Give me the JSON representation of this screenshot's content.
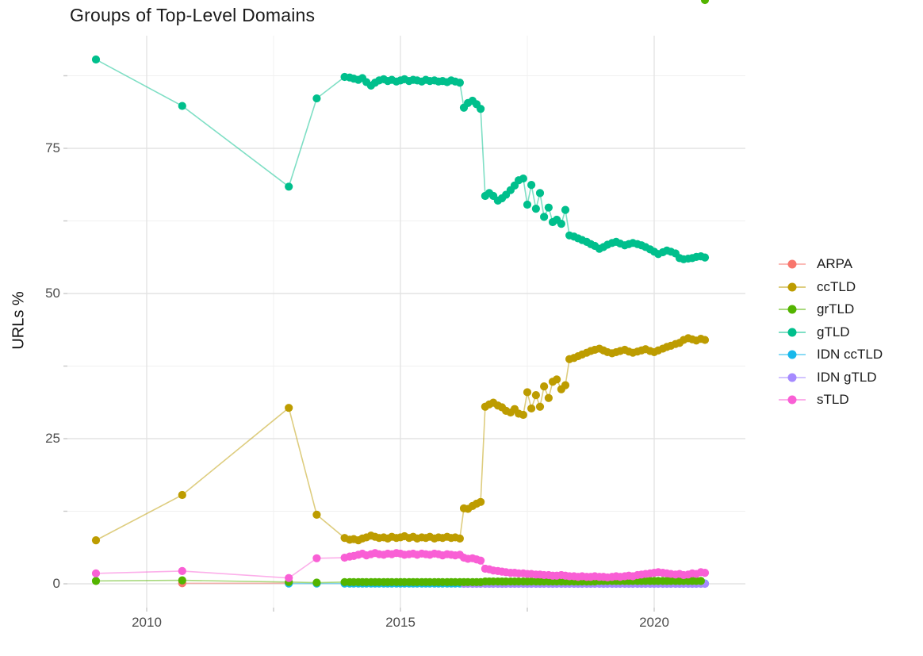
{
  "title": "Groups of Top-Level Domains",
  "chart_data": {
    "type": "line",
    "title": "Groups of Top-Level Domains",
    "xlabel": "",
    "ylabel": "URLs %",
    "legend_position": "right",
    "grid": true,
    "background": "#ffffff",
    "grid_major_color": "#e3e3e3",
    "grid_minor_color": "#f0f0f0",
    "tick_color": "#c9c9c9",
    "axis_text_color": "#4d4d4d",
    "xlim": [
      2008.4,
      2021.6
    ],
    "ylim": [
      -4,
      94
    ],
    "x_ticks": [
      {
        "value": 2010,
        "label": "2010"
      },
      {
        "value": 2015,
        "label": "2015"
      },
      {
        "value": 2020,
        "label": "2020"
      }
    ],
    "x_minor": [
      2012.5,
      2017.5
    ],
    "y_ticks": [
      {
        "value": 0,
        "label": "0"
      },
      {
        "value": 25,
        "label": "25"
      },
      {
        "value": 50,
        "label": "50"
      },
      {
        "value": 75,
        "label": "75"
      }
    ],
    "y_minor": [
      12.5,
      37.5,
      62.5,
      87.5
    ],
    "x_grids": {
      "arpa": [
        2010.7,
        2012.8
      ],
      "early3": [
        2012.8,
        2013.35,
        2013.9
      ],
      "early5": [
        2009.0,
        2010.7,
        2012.8,
        2013.35,
        2013.9
      ],
      "plateau": [
        2014.0,
        2014.08,
        2014.17,
        2014.25,
        2014.33,
        2014.42,
        2014.5,
        2014.58,
        2014.67,
        2014.75,
        2014.83,
        2014.92,
        2015.0,
        2015.08,
        2015.17,
        2015.25,
        2015.33,
        2015.42,
        2015.5,
        2015.58,
        2015.67,
        2015.75,
        2015.83,
        2015.92,
        2016.0,
        2016.08,
        2016.17
      ],
      "shelf": [
        2016.25,
        2016.33,
        2016.42,
        2016.5,
        2016.58
      ],
      "post": [
        2016.67,
        2016.75,
        2016.83,
        2016.92,
        2017.0,
        2017.08,
        2017.17,
        2017.25,
        2017.33,
        2017.42,
        2017.5,
        2017.58,
        2017.67,
        2017.75,
        2017.83,
        2017.92,
        2018.0,
        2018.08,
        2018.17,
        2018.25,
        2018.33,
        2018.42,
        2018.5,
        2018.58,
        2018.67,
        2018.75,
        2018.83,
        2018.92,
        2019.0,
        2019.08,
        2019.17,
        2019.25,
        2019.33,
        2019.42,
        2019.5,
        2019.58,
        2019.67,
        2019.75,
        2019.83,
        2019.92,
        2020.0,
        2020.08,
        2020.17,
        2020.25,
        2020.33,
        2020.42,
        2020.5,
        2020.58,
        2020.67,
        2020.75,
        2020.83,
        2020.92,
        2021.0
      ]
    },
    "series": [
      {
        "name": "ARPA",
        "color": "#F8766D",
        "z": 1,
        "x_ref": [
          "arpa"
        ],
        "y": [
          0.1,
          0.1
        ]
      },
      {
        "name": "ccTLD",
        "color": "#BD9C00",
        "z": 5,
        "x_ref": [
          "early5",
          "plateau",
          "shelf",
          "post"
        ],
        "y": [
          7.5,
          15.3,
          30.3,
          11.9,
          7.9,
          7.6,
          7.7,
          7.5,
          7.8,
          8.0,
          8.3,
          8.1,
          7.9,
          8.0,
          7.8,
          8.1,
          7.9,
          8.0,
          8.2,
          7.9,
          8.1,
          7.8,
          8.0,
          7.9,
          8.1,
          7.8,
          8.0,
          7.9,
          8.1,
          7.9,
          8.0,
          7.8,
          13.0,
          12.9,
          13.4,
          13.8,
          14.1,
          30.5,
          30.9,
          31.2,
          30.7,
          30.4,
          29.8,
          29.5,
          30.1,
          29.3,
          29.1,
          33.0,
          30.2,
          32.5,
          30.5,
          34.0,
          32.0,
          34.8,
          35.2,
          33.5,
          34.2,
          38.7,
          38.9,
          39.2,
          39.5,
          39.8,
          40.1,
          40.3,
          40.5,
          40.2,
          39.9,
          39.7,
          39.9,
          40.1,
          40.3,
          40.0,
          39.8,
          40.0,
          40.2,
          40.4,
          40.1,
          39.9,
          40.2,
          40.5,
          40.8,
          41.0,
          41.3,
          41.5,
          42.0,
          42.3,
          42.1,
          41.9,
          42.2,
          42.0
        ]
      },
      {
        "name": "grTLD",
        "color": "#53B400",
        "z": 4,
        "x_ref": [
          "early5",
          "plateau",
          "shelf",
          "post"
        ],
        "y": [
          0.5,
          0.6,
          0.3,
          0.2,
          0.3,
          0.3,
          0.3,
          0.3,
          0.3,
          0.3,
          0.3,
          0.3,
          0.3,
          0.3,
          0.3,
          0.3,
          0.3,
          0.3,
          0.3,
          0.3,
          0.3,
          0.3,
          0.3,
          0.3,
          0.3,
          0.3,
          0.3,
          0.3,
          0.3,
          0.3,
          0.3,
          0.3,
          0.3,
          0.3,
          0.3,
          0.3,
          0.3,
          0.4,
          0.4,
          0.4,
          0.4,
          0.4,
          0.4,
          0.4,
          0.4,
          0.4,
          0.4,
          0.4,
          0.4,
          0.4,
          0.4,
          0.4,
          0.4,
          0.4,
          0.4,
          0.4,
          0.4,
          0.4,
          0.4,
          0.4,
          0.4,
          0.4,
          0.4,
          0.4,
          0.5,
          0.5,
          0.5,
          0.5,
          0.5,
          0.5,
          0.5,
          0.5,
          0.5,
          0.5,
          0.5,
          0.5,
          0.5,
          0.5,
          0.5,
          0.5,
          0.5,
          0.5,
          0.5,
          0.5,
          0.5,
          0.5,
          0.5,
          0.5,
          0.5
        ]
      },
      {
        "name": "gTLD",
        "color": "#00BF8C",
        "z": 6,
        "x_ref": [
          "early5",
          "plateau",
          "shelf",
          "post"
        ],
        "y": [
          90.3,
          82.3,
          68.4,
          83.6,
          87.3,
          87.2,
          87.0,
          86.8,
          87.1,
          86.4,
          85.8,
          86.3,
          86.7,
          86.9,
          86.6,
          86.8,
          86.5,
          86.7,
          86.9,
          86.6,
          86.8,
          86.7,
          86.5,
          86.8,
          86.6,
          86.7,
          86.5,
          86.6,
          86.4,
          86.7,
          86.5,
          86.3,
          82.0,
          82.8,
          83.2,
          82.6,
          81.8,
          66.8,
          67.3,
          66.8,
          66.0,
          66.4,
          67.0,
          67.8,
          68.6,
          69.5,
          69.8,
          65.3,
          68.7,
          64.6,
          67.3,
          63.2,
          64.8,
          62.3,
          62.7,
          62.0,
          64.4,
          60.0,
          59.8,
          59.5,
          59.2,
          58.9,
          58.5,
          58.2,
          57.7,
          58.0,
          58.4,
          58.7,
          58.9,
          58.6,
          58.3,
          58.5,
          58.7,
          58.5,
          58.3,
          58.0,
          57.6,
          57.2,
          56.8,
          57.1,
          57.4,
          57.2,
          56.9,
          56.1,
          55.9,
          56.0,
          56.1,
          56.3,
          56.4,
          56.2
        ]
      },
      {
        "name": "IDN ccTLD",
        "color": "#17B8EB",
        "z": 2,
        "x_ref": [
          "early3",
          "plateau",
          "shelf",
          "post"
        ],
        "y_const": 0.05
      },
      {
        "name": "IDN gTLD",
        "color": "#A58AFF",
        "z": 3,
        "x_ref": [
          "shelf",
          "post"
        ],
        "y_const": 0.0
      },
      {
        "name": "sTLD",
        "color": "#F95FD5",
        "z": 7,
        "x_ref": [
          "early5",
          "plateau",
          "shelf",
          "post"
        ],
        "y": [
          1.8,
          2.2,
          1.0,
          4.4,
          4.5,
          4.7,
          4.8,
          5.0,
          5.2,
          4.9,
          5.1,
          5.3,
          5.1,
          5.0,
          5.2,
          5.1,
          5.3,
          5.2,
          5.0,
          5.1,
          5.2,
          5.0,
          5.2,
          5.1,
          5.0,
          5.2,
          5.1,
          4.9,
          5.1,
          5.0,
          4.9,
          5.0,
          4.5,
          4.3,
          4.4,
          4.2,
          4.0,
          2.6,
          2.5,
          2.3,
          2.2,
          2.1,
          2.0,
          1.9,
          1.9,
          1.8,
          1.8,
          1.7,
          1.7,
          1.6,
          1.6,
          1.5,
          1.5,
          1.4,
          1.4,
          1.5,
          1.4,
          1.3,
          1.3,
          1.2,
          1.3,
          1.2,
          1.2,
          1.3,
          1.2,
          1.2,
          1.1,
          1.2,
          1.3,
          1.2,
          1.3,
          1.4,
          1.3,
          1.5,
          1.6,
          1.7,
          1.8,
          1.9,
          2.0,
          1.9,
          1.8,
          1.7,
          1.6,
          1.7,
          1.5,
          1.6,
          1.8,
          1.7,
          2.0,
          1.9
        ]
      }
    ]
  }
}
